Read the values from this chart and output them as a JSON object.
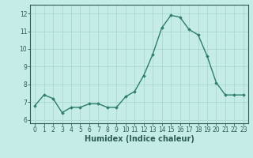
{
  "x": [
    0,
    1,
    2,
    3,
    4,
    5,
    6,
    7,
    8,
    9,
    10,
    11,
    12,
    13,
    14,
    15,
    16,
    17,
    18,
    19,
    20,
    21,
    22,
    23
  ],
  "y": [
    6.8,
    7.4,
    7.2,
    6.4,
    6.7,
    6.7,
    6.9,
    6.9,
    6.7,
    6.7,
    7.3,
    7.6,
    8.5,
    9.7,
    11.2,
    11.9,
    11.8,
    11.1,
    10.8,
    9.6,
    8.1,
    7.4,
    7.4,
    7.4
  ],
  "line_color": "#2e7d6e",
  "marker": "D",
  "marker_size": 1.8,
  "line_width": 1.0,
  "bg_color": "#c5ece6",
  "grid_color": "#aad8d0",
  "axis_bg": "#c5ece6",
  "xlabel": "Humidex (Indice chaleur)",
  "ylabel": "",
  "xlim": [
    -0.5,
    23.5
  ],
  "ylim": [
    5.8,
    12.5
  ],
  "yticks": [
    6,
    7,
    8,
    9,
    10,
    11,
    12
  ],
  "xticks": [
    0,
    1,
    2,
    3,
    4,
    5,
    6,
    7,
    8,
    9,
    10,
    11,
    12,
    13,
    14,
    15,
    16,
    17,
    18,
    19,
    20,
    21,
    22,
    23
  ],
  "tick_fontsize": 5.5,
  "xlabel_fontsize": 7,
  "tick_color": "#2e5c54",
  "border_color": "#2e5c54",
  "spine_linewidth": 0.8
}
